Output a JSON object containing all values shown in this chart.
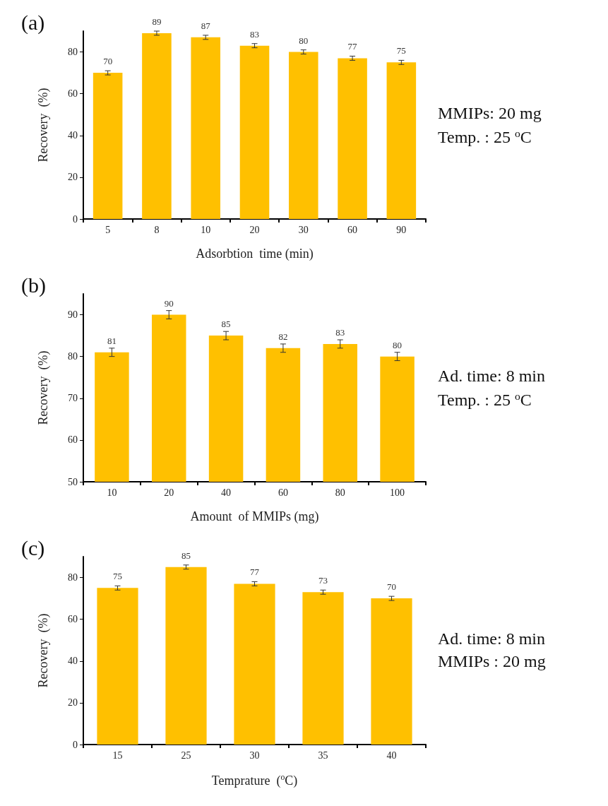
{
  "chart_data": [
    {
      "type": "bar",
      "title": "(a)",
      "xlabel": "Adsorbtion  time (min)",
      "ylabel": "Recovery  (%)",
      "categories": [
        "5",
        "8",
        "10",
        "20",
        "30",
        "60",
        "90"
      ],
      "values": [
        70,
        89,
        87,
        83,
        80,
        77,
        75
      ],
      "errors": [
        1,
        1,
        1,
        1,
        1,
        1,
        1
      ],
      "color": "#ffc000",
      "ylim": [
        0,
        90
      ],
      "yticks": [
        0,
        20,
        40,
        60,
        80
      ],
      "data_labels": true,
      "annotations": [
        "MMIPs: 20 mg",
        "Temp. : 25 $^{o}$C"
      ]
    },
    {
      "type": "bar",
      "title": "(b)",
      "xlabel": "Amount  of MMIPs (mg)",
      "ylabel": "Recovery  (%)",
      "categories": [
        "10",
        "20",
        "40",
        "60",
        "80",
        "100"
      ],
      "values": [
        81,
        90,
        85,
        82,
        83,
        80
      ],
      "errors": [
        1,
        1,
        1,
        1,
        1,
        1
      ],
      "color": "#ffc000",
      "ylim": [
        50,
        95
      ],
      "yticks": [
        50,
        60,
        70,
        80,
        90
      ],
      "data_labels": true,
      "annotations": [
        "Ad. time: 8 min",
        "Temp. : 25 $^{o}$C"
      ]
    },
    {
      "type": "bar",
      "title": "(c)",
      "xlabel": "Temprature  ($^{o}$C)",
      "ylabel": "Recovery  (%)",
      "categories": [
        "15",
        "25",
        "30",
        "35",
        "40"
      ],
      "values": [
        75,
        85,
        77,
        73,
        70
      ],
      "errors": [
        1,
        1,
        1,
        1,
        1
      ],
      "color": "#ffc000",
      "ylim": [
        0,
        90
      ],
      "yticks": [
        0,
        20,
        40,
        60,
        80
      ],
      "data_labels": true,
      "annotations": [
        "Ad. time: 8 min",
        "MMIPs : 20 mg"
      ]
    }
  ]
}
